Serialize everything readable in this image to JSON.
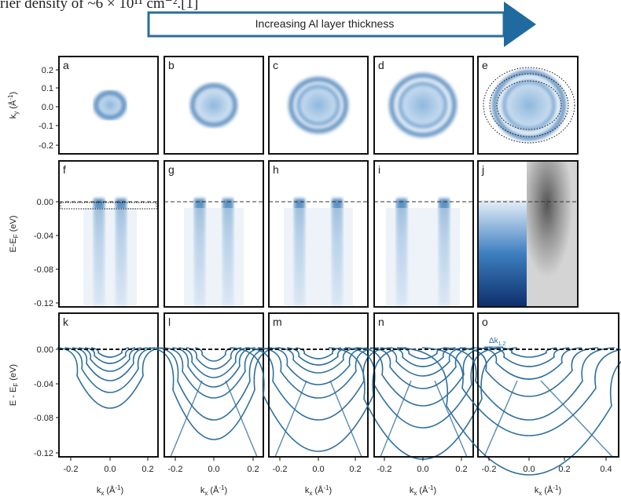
{
  "caption_fragment": "rier density of ~6 × 10¹¹ cm⁻².[1]",
  "arrow_label": "Increasing Al layer thickness",
  "panel_letters": [
    "a",
    "b",
    "c",
    "d",
    "e",
    "f",
    "g",
    "h",
    "i",
    "j",
    "k",
    "l",
    "m",
    "n",
    "o"
  ],
  "y_axis_labels": [
    [
      "k",
      "y",
      " (Å",
      "-1",
      ")"
    ],
    [
      "E-E",
      "F",
      " (eV)",
      "",
      ""
    ],
    [
      "E - E",
      "F",
      " (eV)",
      "",
      ""
    ]
  ],
  "x_axis_label": [
    "k",
    "x",
    " (Å",
    "-1",
    ")"
  ],
  "row_ticks": [
    [
      "0.2",
      "0.1",
      "0.0",
      "-0.1",
      "-0.2"
    ],
    [
      "0.00",
      "-0.04",
      "-0.08",
      "-0.12"
    ],
    [
      "0.00",
      "-0.04",
      "-0.08",
      "-0.12"
    ]
  ],
  "col_ticks": [
    [
      "-0.2",
      "0.0",
      "0.2"
    ],
    [
      "-0.2",
      "0.0",
      "0.2"
    ],
    [
      "-0.2",
      "0.0",
      "0.2"
    ],
    [
      "-0.2",
      "0.0",
      "0.2"
    ],
    [
      "-0.2",
      "0.0",
      "0.2",
      "0.4"
    ]
  ],
  "annotation": [
    "Δk",
    "1,2"
  ]
}
